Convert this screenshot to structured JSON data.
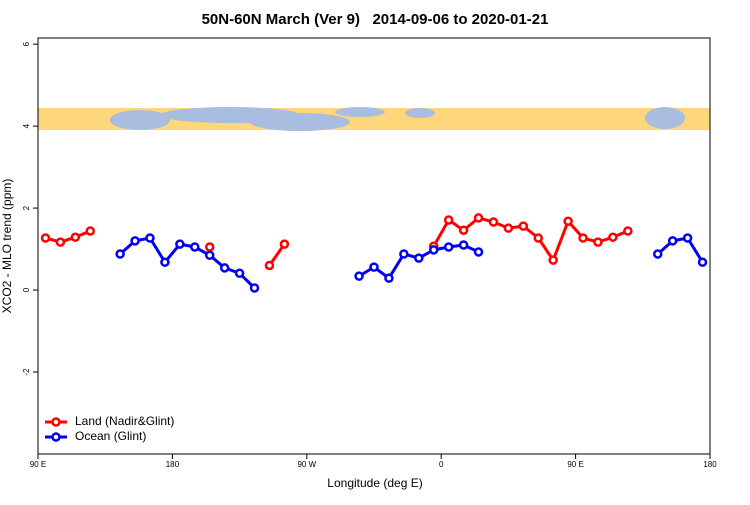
{
  "chart_data": {
    "type": "line",
    "title": "50N-60N March (Ver 9)   2014-09-06 to 2020-01-21",
    "x_label": "Longitude (deg E)",
    "y_label": "XCO2 - MLO trend (ppm)",
    "x": [
      95,
      105,
      115,
      125,
      135,
      145,
      155,
      165,
      175,
      185,
      195,
      205,
      215,
      225,
      235,
      245,
      255,
      265,
      275,
      285,
      295,
      305,
      315,
      325,
      335,
      345,
      355,
      365,
      375,
      385,
      395,
      405,
      415,
      425,
      435,
      445,
      455,
      465,
      475,
      485,
      495,
      505,
      515,
      525,
      535
    ],
    "series": [
      {
        "name": "Land (Nadir&Glint)",
        "color": "#ff0000",
        "values": [
          1.27,
          1.17,
          1.29,
          1.44,
          null,
          null,
          null,
          null,
          null,
          null,
          null,
          1.05,
          null,
          null,
          null,
          0.6,
          1.12,
          null,
          null,
          null,
          null,
          null,
          null,
          null,
          null,
          null,
          1.07,
          1.71,
          1.46,
          1.76,
          1.66,
          1.51,
          1.56,
          1.27,
          0.73,
          1.68,
          1.27,
          1.17,
          1.29,
          1.44,
          null,
          null,
          null,
          null,
          null
        ]
      },
      {
        "name": "Ocean (Glint)",
        "color": "#0000ee",
        "values": [
          null,
          null,
          null,
          null,
          null,
          0.88,
          1.2,
          1.27,
          0.68,
          1.12,
          1.05,
          0.85,
          0.54,
          0.41,
          0.05,
          null,
          null,
          null,
          null,
          null,
          null,
          0.34,
          0.56,
          0.29,
          0.88,
          0.78,
          0.98,
          1.05,
          1.1,
          0.93,
          null,
          null,
          null,
          null,
          null,
          null,
          null,
          null,
          null,
          null,
          null,
          0.88,
          1.2,
          1.27,
          0.68
        ]
      }
    ],
    "xlim": [
      90,
      540
    ],
    "xticks": [
      {
        "value": 90,
        "label": "90 E"
      },
      180,
      {
        "value": 270,
        "label": "90 W"
      },
      0,
      {
        "value": 450,
        "label": "90 E"
      },
      180
    ],
    "ylim": [
      -4,
      6.15
    ],
    "yticks": [
      -2,
      0,
      2,
      4,
      6
    ],
    "legend": "bottom-left"
  }
}
